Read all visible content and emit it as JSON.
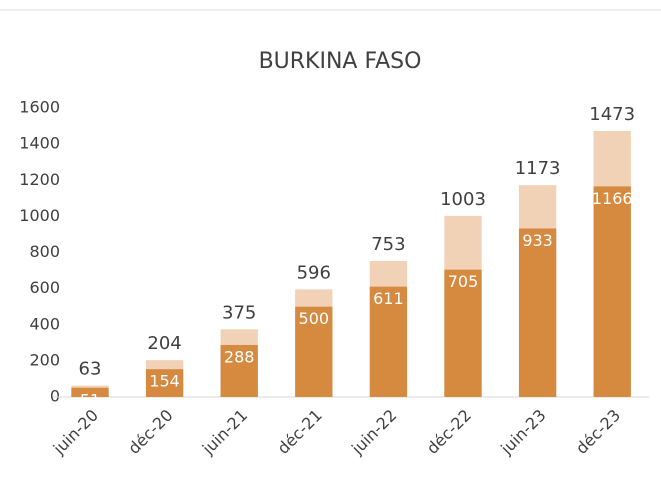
{
  "chart_data": {
    "type": "bar",
    "title": "BURKINA FASO",
    "categories": [
      "juin-20",
      "déc-20",
      "juin-21",
      "déc-21",
      "juin-22",
      "déc-22",
      "juin-23",
      "déc-23"
    ],
    "series": [
      {
        "color": "#f2d2b6",
        "values": [
          63,
          204,
          375,
          596,
          753,
          1003,
          1173,
          1473
        ]
      },
      {
        "color": "#d68a40",
        "values": [
          51,
          154,
          288,
          500,
          611,
          705,
          933,
          1166
        ]
      }
    ],
    "ylim": [
      0,
      1600
    ],
    "yticks": [
      0,
      200,
      400,
      600,
      800,
      1000,
      1200,
      1400,
      1600
    ],
    "grid": false
  }
}
